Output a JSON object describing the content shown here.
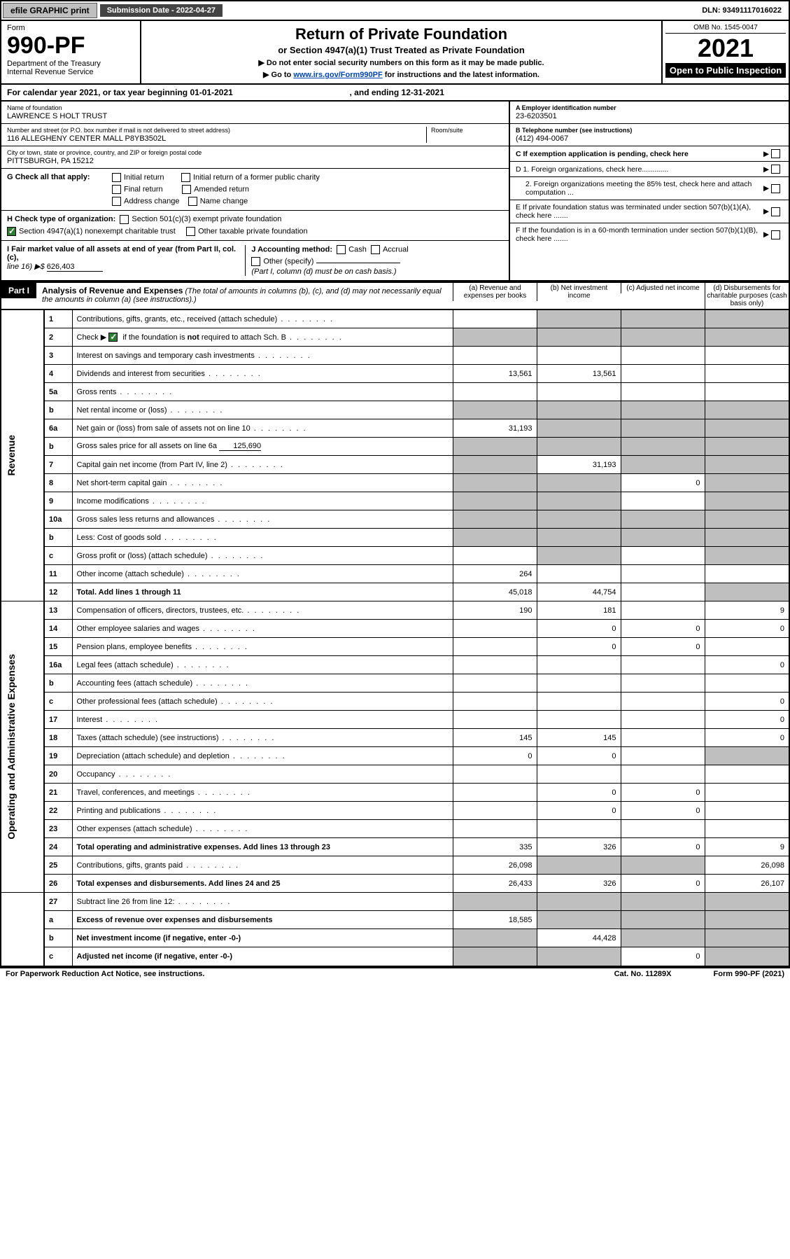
{
  "topbar": {
    "efile": "efile GRAPHIC print",
    "submission": "Submission Date - 2022-04-27",
    "dln": "DLN: 93491117016022"
  },
  "formBlock": {
    "formWord": "Form",
    "formNo": "990-PF",
    "dept": "Department of the Treasury",
    "irs": "Internal Revenue Service"
  },
  "titleBlock": {
    "h1": "Return of Private Foundation",
    "sub1": "or Section 4947(a)(1) Trust Treated as Private Foundation",
    "note1": "▶ Do not enter social security numbers on this form as it may be made public.",
    "note2_a": "▶ Go to ",
    "note2_link": "www.irs.gov/Form990PF",
    "note2_b": " for instructions and the latest information."
  },
  "yearBlock": {
    "omb": "OMB No. 1545-0047",
    "year": "2021",
    "open": "Open to Public Inspection"
  },
  "calendarLine": {
    "a": "For calendar year 2021, or tax year beginning 01-01-2021",
    "b": ", and ending 12-31-2021"
  },
  "nameBlock": {
    "lbl": "Name of foundation",
    "val": "LAWRENCE S HOLT TRUST"
  },
  "addrBlock": {
    "lbl": "Number and street (or P.O. box number if mail is not delivered to street address)",
    "val": "116 ALLEGHENY CENTER MALL P8YB3502L",
    "roomLbl": "Room/suite"
  },
  "cityBlock": {
    "lbl": "City or town, state or province, country, and ZIP or foreign postal code",
    "val": "PITTSBURGH, PA  15212"
  },
  "einBlock": {
    "lbl": "A Employer identification number",
    "val": "23-6203501"
  },
  "telBlock": {
    "lbl": "B Telephone number (see instructions)",
    "val": "(412) 494-0067"
  },
  "cBlock": {
    "lbl": "C If exemption application is pending, check here"
  },
  "gBlock": {
    "lead": "G Check all that apply:",
    "opts": [
      "Initial return",
      "Final return",
      "Address change",
      "Initial return of a former public charity",
      "Amended return",
      "Name change"
    ]
  },
  "dBlock": {
    "d1": "D 1. Foreign organizations, check here.............",
    "d2": "2. Foreign organizations meeting the 85% test, check here and attach computation ..."
  },
  "hBlock": {
    "lead": "H Check type of organization:",
    "o1": "Section 501(c)(3) exempt private foundation",
    "o2": "Section 4947(a)(1) nonexempt charitable trust",
    "o3": "Other taxable private foundation"
  },
  "eBlock": {
    "txt": "E  If private foundation status was terminated under section 507(b)(1)(A), check here ......."
  },
  "iBlock": {
    "lead": "I Fair market value of all assets at end of year (from Part II, col. (c),",
    "line": "line 16) ▶$",
    "val": "626,403"
  },
  "jBlock": {
    "lead": "J Accounting method:",
    "o1": "Cash",
    "o2": "Accrual",
    "o3": "Other (specify)",
    "note": "(Part I, column (d) must be on cash basis.)"
  },
  "fBlock": {
    "txt": "F  If the foundation is in a 60-month termination under section 507(b)(1)(B), check here ......."
  },
  "part1": {
    "tab": "Part I",
    "title": "Analysis of Revenue and Expenses",
    "note": "(The total of amounts in columns (b), (c), and (d) may not necessarily equal the amounts in column (a) (see instructions).)",
    "col_a": "(a)   Revenue and expenses per books",
    "col_b": "(b)   Net investment income",
    "col_c": "(c)   Adjusted net income",
    "col_d": "(d)  Disbursements for charitable purposes (cash basis only)"
  },
  "sideLabels": {
    "rev": "Revenue",
    "op": "Operating and Administrative Expenses"
  },
  "lines": {
    "1": {
      "n": "1",
      "d": "Contributions, gifts, grants, etc., received (attach schedule)",
      "a": "",
      "b_sh": true,
      "c_sh": true,
      "d_sh": true
    },
    "2": {
      "n": "2",
      "d_a": "Check ▶ ",
      "d_b": " if the foundation is ",
      "d_not": "not",
      "d_c": " required to attach Sch. B",
      "a_sh": true,
      "b_sh": true,
      "c_sh": true,
      "d_sh": true,
      "checked": true
    },
    "3": {
      "n": "3",
      "d": "Interest on savings and temporary cash investments"
    },
    "4": {
      "n": "4",
      "d": "Dividends and interest from securities",
      "a": "13,561",
      "b": "13,561"
    },
    "5a": {
      "n": "5a",
      "d": "Gross rents"
    },
    "5b": {
      "n": "b",
      "d": "Net rental income or (loss)",
      "a_sh": true,
      "b_sh": true,
      "c_sh": true,
      "d_sh": true
    },
    "6a": {
      "n": "6a",
      "d": "Net gain or (loss) from sale of assets not on line 10",
      "a": "31,193",
      "b_sh": true,
      "c_sh": true,
      "d_sh": true
    },
    "6b": {
      "n": "b",
      "d_a": "Gross sales price for all assets on line 6a",
      "inlineVal": "125,690",
      "a_sh": true,
      "b_sh": true,
      "c_sh": true,
      "d_sh": true
    },
    "7": {
      "n": "7",
      "d": "Capital gain net income (from Part IV, line 2)",
      "a_sh": true,
      "b": "31,193",
      "c_sh": true,
      "d_sh": true
    },
    "8": {
      "n": "8",
      "d": "Net short-term capital gain",
      "a_sh": true,
      "b_sh": true,
      "c": "0",
      "d_sh": true
    },
    "9": {
      "n": "9",
      "d": "Income modifications",
      "a_sh": true,
      "b_sh": true,
      "d_sh": true
    },
    "10a": {
      "n": "10a",
      "d": "Gross sales less returns and allowances",
      "a_sh": true,
      "b_sh": true,
      "c_sh": true,
      "d_sh": true
    },
    "10b": {
      "n": "b",
      "d": "Less: Cost of goods sold",
      "a_sh": true,
      "b_sh": true,
      "c_sh": true,
      "d_sh": true
    },
    "10c": {
      "n": "c",
      "d": "Gross profit or (loss) (attach schedule)",
      "a_sh": false,
      "b_sh": true,
      "d_sh": true
    },
    "11": {
      "n": "11",
      "d": "Other income (attach schedule)",
      "a": "264"
    },
    "12": {
      "n": "12",
      "d": "Total. Add lines 1 through 11",
      "bold": true,
      "a": "45,018",
      "b": "44,754",
      "d_sh": true
    },
    "13": {
      "n": "13",
      "d": "Compensation of officers, directors, trustees, etc.",
      "a": "190",
      "b": "181",
      "c": "",
      "dd": "9"
    },
    "14": {
      "n": "14",
      "d": "Other employee salaries and wages",
      "b": "0",
      "c": "0",
      "dd": "0"
    },
    "15": {
      "n": "15",
      "d": "Pension plans, employee benefits",
      "b": "0",
      "c": "0"
    },
    "16a": {
      "n": "16a",
      "d": "Legal fees (attach schedule)",
      "dd": "0"
    },
    "16b": {
      "n": "b",
      "d": "Accounting fees (attach schedule)"
    },
    "16c": {
      "n": "c",
      "d": "Other professional fees (attach schedule)",
      "dd": "0"
    },
    "17": {
      "n": "17",
      "d": "Interest",
      "dd": "0"
    },
    "18": {
      "n": "18",
      "d": "Taxes (attach schedule) (see instructions)",
      "a": "145",
      "b": "145",
      "dd": "0"
    },
    "19": {
      "n": "19",
      "d": "Depreciation (attach schedule) and depletion",
      "a": "0",
      "b": "0",
      "d_sh": true
    },
    "20": {
      "n": "20",
      "d": "Occupancy"
    },
    "21": {
      "n": "21",
      "d": "Travel, conferences, and meetings",
      "b": "0",
      "c": "0"
    },
    "22": {
      "n": "22",
      "d": "Printing and publications",
      "b": "0",
      "c": "0"
    },
    "23": {
      "n": "23",
      "d": "Other expenses (attach schedule)"
    },
    "24": {
      "n": "24",
      "d": "Total operating and administrative expenses. Add lines 13 through 23",
      "bold": true,
      "a": "335",
      "b": "326",
      "c": "0",
      "dd": "9"
    },
    "25": {
      "n": "25",
      "d": "Contributions, gifts, grants paid",
      "a": "26,098",
      "b_sh": true,
      "c_sh": true,
      "dd": "26,098"
    },
    "26": {
      "n": "26",
      "d": "Total expenses and disbursements. Add lines 24 and 25",
      "bold": true,
      "a": "26,433",
      "b": "326",
      "c": "0",
      "dd": "26,107"
    },
    "27": {
      "n": "27",
      "d": "Subtract line 26 from line 12:",
      "a_sh": true,
      "b_sh": true,
      "c_sh": true,
      "d_sh": true
    },
    "27a": {
      "n": "a",
      "d": "Excess of revenue over expenses and disbursements",
      "bold": true,
      "a": "18,585",
      "b_sh": true,
      "c_sh": true,
      "d_sh": true
    },
    "27b": {
      "n": "b",
      "d": "Net investment income (if negative, enter -0-)",
      "bold": true,
      "a_sh": true,
      "b": "44,428",
      "c_sh": true,
      "d_sh": true
    },
    "27c": {
      "n": "c",
      "d": "Adjusted net income (if negative, enter -0-)",
      "bold": true,
      "a_sh": true,
      "b_sh": true,
      "c": "0",
      "d_sh": true
    }
  },
  "footer": {
    "left": "For Paperwork Reduction Act Notice, see instructions.",
    "mid": "Cat. No. 11289X",
    "right": "Form 990-PF (2021)"
  },
  "colors": {
    "shade": "#bfbfbf",
    "black": "#000000",
    "link": "#0047b3",
    "checkGreen": "#2e7d32"
  }
}
